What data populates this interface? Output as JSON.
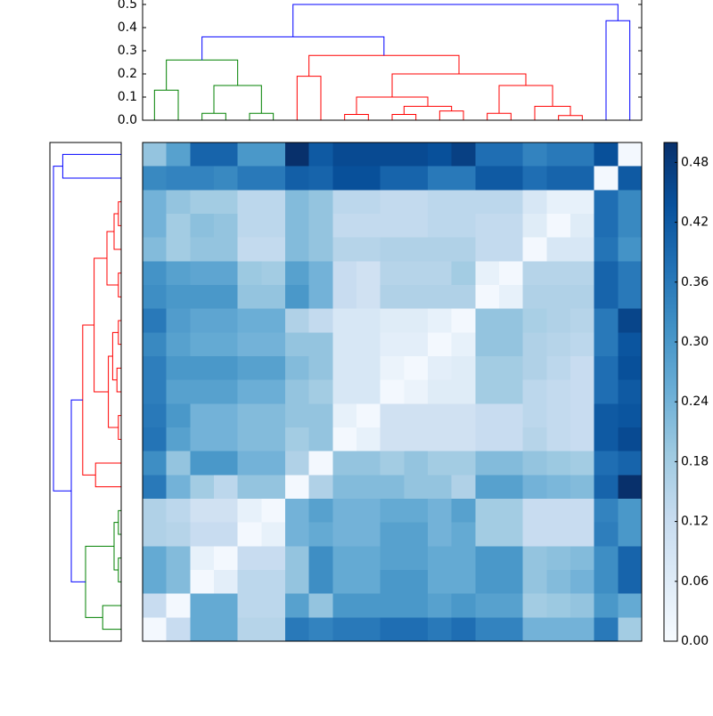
{
  "chart_data": {
    "type": "heatmap",
    "matrix": [
      [
        0.2,
        0.28,
        0.4,
        0.4,
        0.3,
        0.3,
        0.5,
        0.42,
        0.45,
        0.45,
        0.45,
        0.45,
        0.44,
        0.47,
        0.38,
        0.38,
        0.34,
        0.36,
        0.36,
        0.44,
        0.01
      ],
      [
        0.33,
        0.34,
        0.34,
        0.33,
        0.36,
        0.36,
        0.41,
        0.4,
        0.44,
        0.44,
        0.4,
        0.4,
        0.36,
        0.36,
        0.42,
        0.42,
        0.38,
        0.4,
        0.4,
        0.01,
        0.42
      ],
      [
        0.24,
        0.2,
        0.18,
        0.18,
        0.14,
        0.14,
        0.22,
        0.2,
        0.14,
        0.14,
        0.13,
        0.13,
        0.14,
        0.14,
        0.14,
        0.14,
        0.08,
        0.04,
        0.04,
        0.38,
        0.33
      ],
      [
        0.24,
        0.18,
        0.21,
        0.2,
        0.14,
        0.14,
        0.22,
        0.2,
        0.13,
        0.13,
        0.13,
        0.13,
        0.14,
        0.14,
        0.13,
        0.13,
        0.06,
        0.01,
        0.06,
        0.38,
        0.33
      ],
      [
        0.22,
        0.18,
        0.2,
        0.2,
        0.13,
        0.13,
        0.22,
        0.2,
        0.15,
        0.15,
        0.16,
        0.16,
        0.16,
        0.16,
        0.13,
        0.13,
        0.01,
        0.08,
        0.08,
        0.37,
        0.31
      ],
      [
        0.31,
        0.28,
        0.27,
        0.27,
        0.19,
        0.18,
        0.28,
        0.24,
        0.12,
        0.1,
        0.15,
        0.15,
        0.15,
        0.18,
        0.04,
        0.01,
        0.15,
        0.15,
        0.15,
        0.4,
        0.36
      ],
      [
        0.32,
        0.3,
        0.3,
        0.3,
        0.2,
        0.2,
        0.3,
        0.24,
        0.12,
        0.1,
        0.16,
        0.16,
        0.16,
        0.16,
        0.01,
        0.04,
        0.16,
        0.16,
        0.16,
        0.4,
        0.36
      ],
      [
        0.36,
        0.29,
        0.27,
        0.27,
        0.25,
        0.25,
        0.16,
        0.13,
        0.08,
        0.08,
        0.06,
        0.06,
        0.04,
        0.01,
        0.2,
        0.2,
        0.17,
        0.16,
        0.15,
        0.36,
        0.46
      ],
      [
        0.33,
        0.28,
        0.26,
        0.26,
        0.24,
        0.24,
        0.2,
        0.2,
        0.08,
        0.08,
        0.05,
        0.05,
        0.01,
        0.04,
        0.2,
        0.2,
        0.16,
        0.15,
        0.14,
        0.36,
        0.43
      ],
      [
        0.35,
        0.3,
        0.3,
        0.3,
        0.28,
        0.28,
        0.22,
        0.2,
        0.08,
        0.08,
        0.03,
        0.01,
        0.05,
        0.06,
        0.18,
        0.18,
        0.16,
        0.14,
        0.12,
        0.38,
        0.44
      ],
      [
        0.35,
        0.28,
        0.28,
        0.28,
        0.25,
        0.25,
        0.2,
        0.18,
        0.08,
        0.08,
        0.01,
        0.03,
        0.06,
        0.06,
        0.18,
        0.18,
        0.14,
        0.13,
        0.12,
        0.38,
        0.42
      ],
      [
        0.36,
        0.3,
        0.24,
        0.24,
        0.22,
        0.22,
        0.2,
        0.2,
        0.04,
        0.01,
        0.1,
        0.1,
        0.1,
        0.1,
        0.12,
        0.12,
        0.14,
        0.13,
        0.12,
        0.42,
        0.43
      ],
      [
        0.37,
        0.28,
        0.24,
        0.24,
        0.22,
        0.22,
        0.18,
        0.2,
        0.01,
        0.04,
        0.1,
        0.1,
        0.1,
        0.1,
        0.12,
        0.12,
        0.15,
        0.13,
        0.12,
        0.42,
        0.45
      ],
      [
        0.32,
        0.2,
        0.3,
        0.3,
        0.24,
        0.24,
        0.16,
        0.01,
        0.2,
        0.2,
        0.18,
        0.2,
        0.18,
        0.18,
        0.22,
        0.22,
        0.2,
        0.19,
        0.18,
        0.38,
        0.4
      ],
      [
        0.36,
        0.24,
        0.18,
        0.14,
        0.2,
        0.2,
        0.01,
        0.16,
        0.22,
        0.22,
        0.22,
        0.2,
        0.2,
        0.16,
        0.28,
        0.28,
        0.24,
        0.23,
        0.22,
        0.4,
        0.5
      ],
      [
        0.16,
        0.14,
        0.1,
        0.1,
        0.04,
        0.01,
        0.24,
        0.28,
        0.24,
        0.24,
        0.26,
        0.26,
        0.24,
        0.28,
        0.18,
        0.18,
        0.12,
        0.12,
        0.12,
        0.34,
        0.3
      ],
      [
        0.16,
        0.15,
        0.12,
        0.12,
        0.01,
        0.04,
        0.24,
        0.26,
        0.24,
        0.24,
        0.28,
        0.28,
        0.24,
        0.26,
        0.18,
        0.18,
        0.12,
        0.12,
        0.12,
        0.35,
        0.3
      ],
      [
        0.26,
        0.22,
        0.04,
        0.01,
        0.12,
        0.12,
        0.2,
        0.32,
        0.26,
        0.26,
        0.28,
        0.28,
        0.26,
        0.26,
        0.3,
        0.3,
        0.2,
        0.21,
        0.22,
        0.32,
        0.4
      ],
      [
        0.26,
        0.22,
        0.01,
        0.05,
        0.14,
        0.14,
        0.2,
        0.32,
        0.26,
        0.26,
        0.3,
        0.3,
        0.26,
        0.26,
        0.3,
        0.3,
        0.2,
        0.22,
        0.24,
        0.32,
        0.4
      ],
      [
        0.12,
        0.01,
        0.26,
        0.26,
        0.14,
        0.14,
        0.28,
        0.2,
        0.3,
        0.3,
        0.3,
        0.3,
        0.28,
        0.3,
        0.28,
        0.28,
        0.18,
        0.19,
        0.2,
        0.3,
        0.26
      ],
      [
        0.01,
        0.12,
        0.26,
        0.26,
        0.15,
        0.15,
        0.36,
        0.34,
        0.36,
        0.36,
        0.38,
        0.38,
        0.36,
        0.38,
        0.34,
        0.34,
        0.24,
        0.24,
        0.24,
        0.36,
        0.18
      ]
    ],
    "colorscale": [
      "#f7fbff",
      "#deebf7",
      "#c6dbef",
      "#9ecae1",
      "#6baed6",
      "#4292c6",
      "#2171b5",
      "#08519c",
      "#08306b"
    ],
    "colorbar": {
      "lim": [
        0,
        0.5
      ],
      "ticks": [
        {
          "value": 0,
          "label": "0.00"
        },
        0.06,
        0.12,
        0.18,
        0.24,
        {
          "value": 0.3,
          "label": "0.30"
        },
        0.36,
        0.42,
        0.48
      ]
    },
    "top_dendrogram": {
      "ylim": [
        0,
        0.5
      ],
      "yticks": [
        {
          "value": 0,
          "label": "0.0"
        },
        0.1,
        0.2,
        0.3,
        0.4,
        {
          "value": 0.5,
          "label": "0.5"
        }
      ],
      "links": [
        {
          "color": "#008000",
          "pos": [
            0,
            0,
            1,
            1
          ],
          "height": [
            0,
            0.13,
            0.13,
            0
          ]
        },
        {
          "color": "#008000",
          "pos": [
            2,
            2,
            3,
            3
          ],
          "height": [
            0,
            0.03,
            0.03,
            0
          ]
        },
        {
          "color": "#008000",
          "pos": [
            4,
            4,
            5,
            5
          ],
          "height": [
            0,
            0.03,
            0.03,
            0
          ]
        },
        {
          "color": "#008000",
          "pos": [
            2.5,
            2.5,
            4.5,
            4.5
          ],
          "height": [
            0.03,
            0.15,
            0.15,
            0.03
          ]
        },
        {
          "color": "#008000",
          "pos": [
            0.5,
            0.5,
            3.5,
            3.5
          ],
          "height": [
            0.13,
            0.26,
            0.26,
            0.15
          ]
        },
        {
          "color": "#ff0000",
          "pos": [
            6,
            6,
            7,
            7
          ],
          "height": [
            0,
            0.19,
            0.19,
            0
          ]
        },
        {
          "color": "#ff0000",
          "pos": [
            8,
            8,
            9,
            9
          ],
          "height": [
            0,
            0.025,
            0.025,
            0
          ]
        },
        {
          "color": "#ff0000",
          "pos": [
            10,
            10,
            11,
            11
          ],
          "height": [
            0,
            0.025,
            0.025,
            0
          ]
        },
        {
          "color": "#ff0000",
          "pos": [
            12,
            12,
            13,
            13
          ],
          "height": [
            0,
            0.04,
            0.04,
            0
          ]
        },
        {
          "color": "#ff0000",
          "pos": [
            10.5,
            10.5,
            12.5,
            12.5
          ],
          "height": [
            0.025,
            0.06,
            0.06,
            0.04
          ]
        },
        {
          "color": "#ff0000",
          "pos": [
            8.5,
            8.5,
            11.5,
            11.5
          ],
          "height": [
            0.025,
            0.1,
            0.1,
            0.06
          ]
        },
        {
          "color": "#ff0000",
          "pos": [
            14,
            14,
            15,
            15
          ],
          "height": [
            0,
            0.03,
            0.03,
            0
          ]
        },
        {
          "color": "#ff0000",
          "pos": [
            17,
            17,
            18,
            18
          ],
          "height": [
            0,
            0.02,
            0.02,
            0
          ]
        },
        {
          "color": "#ff0000",
          "pos": [
            16,
            16,
            17.5,
            17.5
          ],
          "height": [
            0,
            0.06,
            0.06,
            0.02
          ]
        },
        {
          "color": "#ff0000",
          "pos": [
            14.5,
            14.5,
            16.75,
            16.75
          ],
          "height": [
            0.03,
            0.15,
            0.15,
            0.06
          ]
        },
        {
          "color": "#ff0000",
          "pos": [
            10,
            10,
            15.625,
            15.625
          ],
          "height": [
            0.1,
            0.2,
            0.2,
            0.15
          ]
        },
        {
          "color": "#ff0000",
          "pos": [
            6.5,
            6.5,
            12.8125,
            12.8125
          ],
          "height": [
            0.19,
            0.28,
            0.28,
            0.2
          ]
        },
        {
          "color": "#0000ff",
          "pos": [
            2,
            2,
            9.65625,
            9.65625
          ],
          "height": [
            0.26,
            0.36,
            0.36,
            0.28
          ]
        },
        {
          "color": "#0000ff",
          "pos": [
            19,
            19,
            20,
            20
          ],
          "height": [
            0,
            0.43,
            0.43,
            0
          ]
        },
        {
          "color": "#0000ff",
          "pos": [
            5.828125,
            5.828125,
            19.5,
            19.5
          ],
          "height": [
            0.36,
            0.5,
            0.5,
            0.43
          ]
        }
      ]
    },
    "left_dendrogram": {
      "xlim": [
        0,
        0.5
      ],
      "links": [
        {
          "color": "#0000ff",
          "pos": [
            0,
            0,
            1,
            1
          ],
          "height": [
            0,
            0.41,
            0.41,
            0
          ]
        },
        {
          "color": "#ff0000",
          "pos": [
            2,
            2,
            3,
            3
          ],
          "height": [
            0,
            0.02,
            0.02,
            0
          ]
        },
        {
          "color": "#ff0000",
          "pos": [
            2.5,
            2.5,
            4,
            4
          ],
          "height": [
            0.02,
            0.05,
            0.05,
            0
          ]
        },
        {
          "color": "#ff0000",
          "pos": [
            5,
            5,
            6,
            6
          ],
          "height": [
            0,
            0.02,
            0.02,
            0
          ]
        },
        {
          "color": "#ff0000",
          "pos": [
            3.25,
            3.25,
            5.5,
            5.5
          ],
          "height": [
            0.05,
            0.1,
            0.1,
            0.02
          ]
        },
        {
          "color": "#ff0000",
          "pos": [
            7,
            7,
            8,
            8
          ],
          "height": [
            0,
            0.02,
            0.02,
            0
          ]
        },
        {
          "color": "#ff0000",
          "pos": [
            9,
            9,
            10,
            10
          ],
          "height": [
            0,
            0.03,
            0.03,
            0
          ]
        },
        {
          "color": "#ff0000",
          "pos": [
            7.5,
            7.5,
            9.5,
            9.5
          ],
          "height": [
            0.02,
            0.06,
            0.06,
            0.03
          ]
        },
        {
          "color": "#ff0000",
          "pos": [
            11,
            11,
            12,
            12
          ],
          "height": [
            0,
            0.02,
            0.02,
            0
          ]
        },
        {
          "color": "#ff0000",
          "pos": [
            8.5,
            8.5,
            11.5,
            11.5
          ],
          "height": [
            0.06,
            0.09,
            0.09,
            0.02
          ]
        },
        {
          "color": "#ff0000",
          "pos": [
            4.375,
            4.375,
            10,
            10
          ],
          "height": [
            0.1,
            0.19,
            0.19,
            0.09
          ]
        },
        {
          "color": "#ff0000",
          "pos": [
            13,
            13,
            14,
            14
          ],
          "height": [
            0,
            0.18,
            0.18,
            0
          ]
        },
        {
          "color": "#ff0000",
          "pos": [
            7.1875,
            7.1875,
            13.5,
            13.5
          ],
          "height": [
            0.19,
            0.27,
            0.27,
            0.18
          ]
        },
        {
          "color": "#008000",
          "pos": [
            15,
            15,
            16,
            16
          ],
          "height": [
            0,
            0.02,
            0.02,
            0
          ]
        },
        {
          "color": "#008000",
          "pos": [
            17,
            17,
            18,
            18
          ],
          "height": [
            0,
            0.02,
            0.02,
            0
          ]
        },
        {
          "color": "#008000",
          "pos": [
            15.5,
            15.5,
            17.5,
            17.5
          ],
          "height": [
            0.02,
            0.05,
            0.05,
            0.02
          ]
        },
        {
          "color": "#008000",
          "pos": [
            19,
            19,
            20,
            20
          ],
          "height": [
            0,
            0.13,
            0.13,
            0
          ]
        },
        {
          "color": "#008000",
          "pos": [
            16.5,
            16.5,
            19.5,
            19.5
          ],
          "height": [
            0.05,
            0.25,
            0.25,
            0.13
          ]
        },
        {
          "color": "#0000ff",
          "pos": [
            10.34375,
            10.34375,
            18,
            18
          ],
          "height": [
            0.27,
            0.35,
            0.35,
            0.25
          ]
        },
        {
          "color": "#0000ff",
          "pos": [
            0.5,
            0.5,
            14.171875,
            14.171875
          ],
          "height": [
            0.41,
            0.475,
            0.475,
            0.35
          ]
        }
      ]
    }
  }
}
